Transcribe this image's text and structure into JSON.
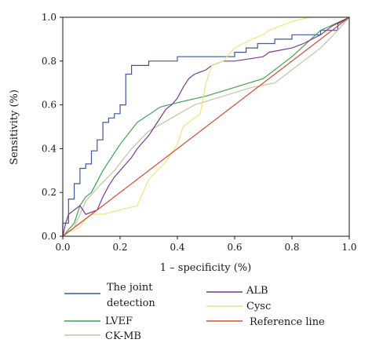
{
  "chart_data": {
    "type": "line",
    "xlabel": "1 – specificity (%)",
    "ylabel": "Sensitivity (%)",
    "xlim": [
      0,
      1
    ],
    "ylim": [
      0,
      1
    ],
    "xticks": [
      "0.0",
      "0.2",
      "0.4",
      "0.6",
      "0.8",
      "1.0"
    ],
    "yticks": [
      "0.0",
      "0.2",
      "0.4",
      "0.6",
      "0.8",
      "1.0"
    ],
    "grid": false,
    "legend_position": "bottom",
    "series": [
      {
        "name": "The joint detection",
        "legend_lines": [
          "The joint",
          "detection"
        ],
        "color": "#3f56a6",
        "x": [
          0,
          0,
          0.02,
          0.02,
          0.04,
          0.04,
          0.06,
          0.06,
          0.08,
          0.08,
          0.1,
          0.1,
          0.12,
          0.12,
          0.14,
          0.14,
          0.16,
          0.16,
          0.18,
          0.18,
          0.2,
          0.2,
          0.22,
          0.22,
          0.24,
          0.24,
          0.3,
          0.3,
          0.4,
          0.4,
          0.6,
          0.6,
          0.64,
          0.64,
          0.68,
          0.68,
          0.74,
          0.74,
          0.8,
          0.8,
          0.9,
          0.9,
          0.96,
          0.96,
          1
        ],
        "y": [
          0,
          0.06,
          0.06,
          0.17,
          0.17,
          0.24,
          0.24,
          0.31,
          0.31,
          0.33,
          0.33,
          0.39,
          0.39,
          0.44,
          0.44,
          0.52,
          0.52,
          0.54,
          0.54,
          0.56,
          0.56,
          0.6,
          0.6,
          0.74,
          0.74,
          0.78,
          0.78,
          0.8,
          0.8,
          0.82,
          0.82,
          0.84,
          0.84,
          0.86,
          0.86,
          0.88,
          0.88,
          0.9,
          0.9,
          0.92,
          0.92,
          0.94,
          0.94,
          0.97,
          1
        ]
      },
      {
        "name": "LVEF",
        "color": "#3fa34d",
        "x": [
          0,
          0.04,
          0.06,
          0.08,
          0.1,
          0.14,
          0.2,
          0.26,
          0.34,
          0.4,
          0.5,
          0.6,
          0.7,
          0.8,
          0.9,
          1
        ],
        "y": [
          0,
          0.06,
          0.14,
          0.18,
          0.2,
          0.3,
          0.42,
          0.52,
          0.59,
          0.61,
          0.64,
          0.68,
          0.72,
          0.82,
          0.94,
          1
        ]
      },
      {
        "name": "CK-MB",
        "color": "#bfc7a4",
        "x": [
          0,
          0.04,
          0.06,
          0.08,
          0.12,
          0.18,
          0.24,
          0.3,
          0.38,
          0.46,
          0.56,
          0.66,
          0.74,
          0.82,
          0.9,
          0.96,
          1
        ],
        "y": [
          0,
          0.04,
          0.1,
          0.16,
          0.22,
          0.3,
          0.4,
          0.48,
          0.54,
          0.6,
          0.64,
          0.68,
          0.7,
          0.78,
          0.86,
          0.94,
          1
        ]
      },
      {
        "name": "ALB",
        "color": "#7a3b8f",
        "x": [
          0,
          0.01,
          0.02,
          0.04,
          0.06,
          0.08,
          0.1,
          0.12,
          0.14,
          0.16,
          0.18,
          0.2,
          0.22,
          0.24,
          0.26,
          0.28,
          0.3,
          0.32,
          0.36,
          0.38,
          0.4,
          0.42,
          0.44,
          0.46,
          0.5,
          0.52,
          0.56,
          0.6,
          0.7,
          0.72,
          0.8,
          0.84,
          0.9,
          0.94,
          1
        ],
        "y": [
          0,
          0.06,
          0.1,
          0.12,
          0.14,
          0.1,
          0.11,
          0.12,
          0.18,
          0.23,
          0.27,
          0.3,
          0.33,
          0.36,
          0.4,
          0.43,
          0.46,
          0.5,
          0.58,
          0.6,
          0.63,
          0.68,
          0.72,
          0.74,
          0.76,
          0.78,
          0.8,
          0.8,
          0.82,
          0.84,
          0.86,
          0.88,
          0.92,
          0.96,
          1
        ]
      },
      {
        "name": "Cysc",
        "color": "#f2e47a",
        "x": [
          0,
          0.02,
          0.06,
          0.08,
          0.1,
          0.14,
          0.2,
          0.26,
          0.28,
          0.3,
          0.36,
          0.4,
          0.42,
          0.48,
          0.5,
          0.52,
          0.56,
          0.6,
          0.66,
          0.7,
          0.72,
          0.76,
          0.8,
          0.86,
          0.92,
          1
        ],
        "y": [
          0,
          0.02,
          0.04,
          0.08,
          0.1,
          0.1,
          0.12,
          0.14,
          0.2,
          0.26,
          0.34,
          0.42,
          0.5,
          0.56,
          0.7,
          0.78,
          0.8,
          0.86,
          0.9,
          0.92,
          0.94,
          0.96,
          0.98,
          1,
          1,
          1
        ]
      },
      {
        "name": "Reference line",
        "color": "#d84a2e",
        "x": [
          0,
          1
        ],
        "y": [
          0,
          1
        ]
      }
    ]
  }
}
